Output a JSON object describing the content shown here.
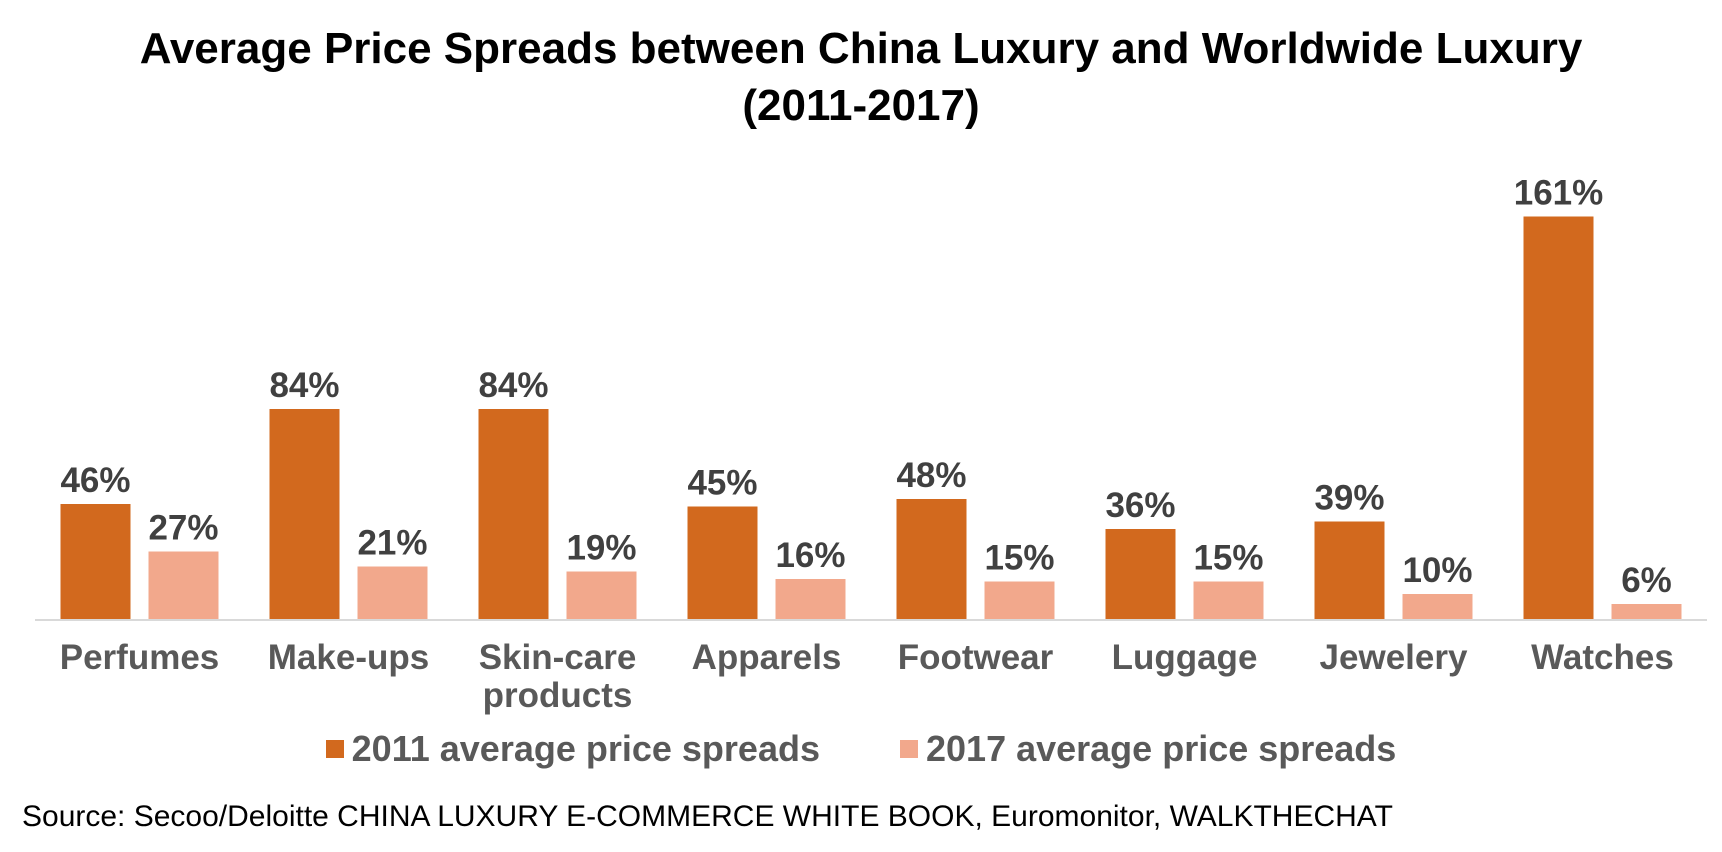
{
  "title": {
    "line1": "Average Price Spreads between China Luxury and Worldwide Luxury",
    "line2": "(2011-2017)"
  },
  "colors": {
    "s2011": "#D2691E",
    "s2017": "#F2A88C",
    "axis": "#D9D9D9",
    "label": "#404040",
    "category": "#595959"
  },
  "chart_data": {
    "type": "bar",
    "title": "Average Price Spreads between China Luxury and Worldwide Luxury (2011-2017)",
    "categories": [
      [
        "Perfumes"
      ],
      [
        "Make-ups"
      ],
      [
        "Skin-care",
        "products"
      ],
      [
        "Apparels"
      ],
      [
        "Footwear"
      ],
      [
        "Luggage"
      ],
      [
        "Jewelery"
      ],
      [
        "Watches"
      ]
    ],
    "series": [
      {
        "name": "2011 average price spreads",
        "values": [
          46,
          84,
          84,
          45,
          48,
          36,
          39,
          161
        ],
        "labels": [
          "46%",
          "84%",
          "84%",
          "45%",
          "48%",
          "36%",
          "39%",
          "161%"
        ]
      },
      {
        "name": "2017 average price spreads",
        "values": [
          27,
          21,
          19,
          16,
          15,
          15,
          10,
          6
        ],
        "labels": [
          "27%",
          "21%",
          "19%",
          "16%",
          "15%",
          "15%",
          "10%",
          "6%"
        ]
      }
    ],
    "unit": "%",
    "ylim": [
      0,
      170
    ],
    "grid": false,
    "legend_position": "bottom",
    "xlabel": "",
    "ylabel": ""
  },
  "legend": {
    "item1": "2011 average price spreads",
    "item2": "2017 average price spreads"
  },
  "source": "Source: Secoo/Deloitte  CHINA LUXURY E-COMMERCE WHITE BOOK, Euromonitor,  WALKTHECHAT"
}
